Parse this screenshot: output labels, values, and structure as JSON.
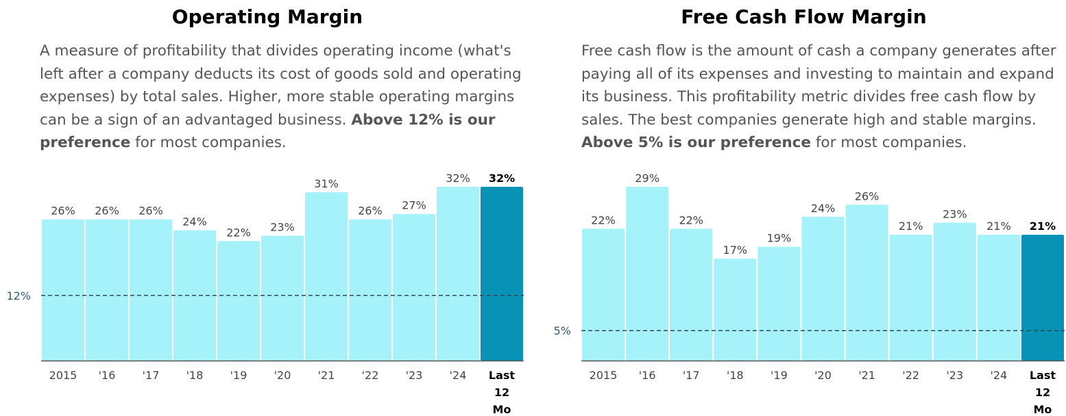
{
  "colors": {
    "bar": "#a5f2fb",
    "highlight": "#0893b6",
    "reference": "#2e4a58",
    "axis": "#555555"
  },
  "panels": [
    {
      "title": "Operating Margin",
      "desc": "A measure of profitability that divides operating income (what's left after a company deducts its cost of goods sold and operating expenses) by total sales. Higher, more stable operating margins can be a sign of an advantaged business.",
      "pref_bold": "Above 12% is our preference",
      "pref_rest": " for most companies."
    },
    {
      "title": "Free Cash Flow Margin",
      "desc": "Free cash flow is the amount of cash a company generates after paying all of its expenses and investing to maintain and expand its business. This profitability metric divides free cash flow by sales. The best companies generate high and stable margins.",
      "pref_bold": "Above 5% is our preference",
      "pref_rest": " for most companies."
    }
  ],
  "chart_data": [
    {
      "type": "bar",
      "title": "Operating Margin",
      "categories": [
        "2015",
        "'16",
        "'17",
        "'18",
        "'19",
        "'20",
        "'21",
        "'22",
        "'23",
        "'24",
        "Last 12 Mo"
      ],
      "values": [
        26,
        26,
        26,
        24,
        22,
        23,
        31,
        26,
        27,
        32,
        32
      ],
      "labels": [
        "26%",
        "26%",
        "26%",
        "24%",
        "22%",
        "23%",
        "31%",
        "26%",
        "27%",
        "32%",
        "32%"
      ],
      "highlight_index": 10,
      "reference": {
        "value": 12,
        "label": "12%"
      },
      "ylim": [
        0,
        32
      ],
      "xlabel": "",
      "ylabel": "",
      "grid": false
    },
    {
      "type": "bar",
      "title": "Free Cash Flow Margin",
      "categories": [
        "2015",
        "'16",
        "'17",
        "'18",
        "'19",
        "'20",
        "'21",
        "'22",
        "'23",
        "'24",
        "Last 12 Mo"
      ],
      "values": [
        22,
        29,
        22,
        17,
        19,
        24,
        26,
        21,
        23,
        21,
        21
      ],
      "labels": [
        "22%",
        "29%",
        "22%",
        "17%",
        "19%",
        "24%",
        "26%",
        "21%",
        "23%",
        "21%",
        "21%"
      ],
      "highlight_index": 10,
      "reference": {
        "value": 5,
        "label": "5%"
      },
      "ylim": [
        0,
        29
      ],
      "xlabel": "",
      "ylabel": "",
      "grid": false
    }
  ]
}
